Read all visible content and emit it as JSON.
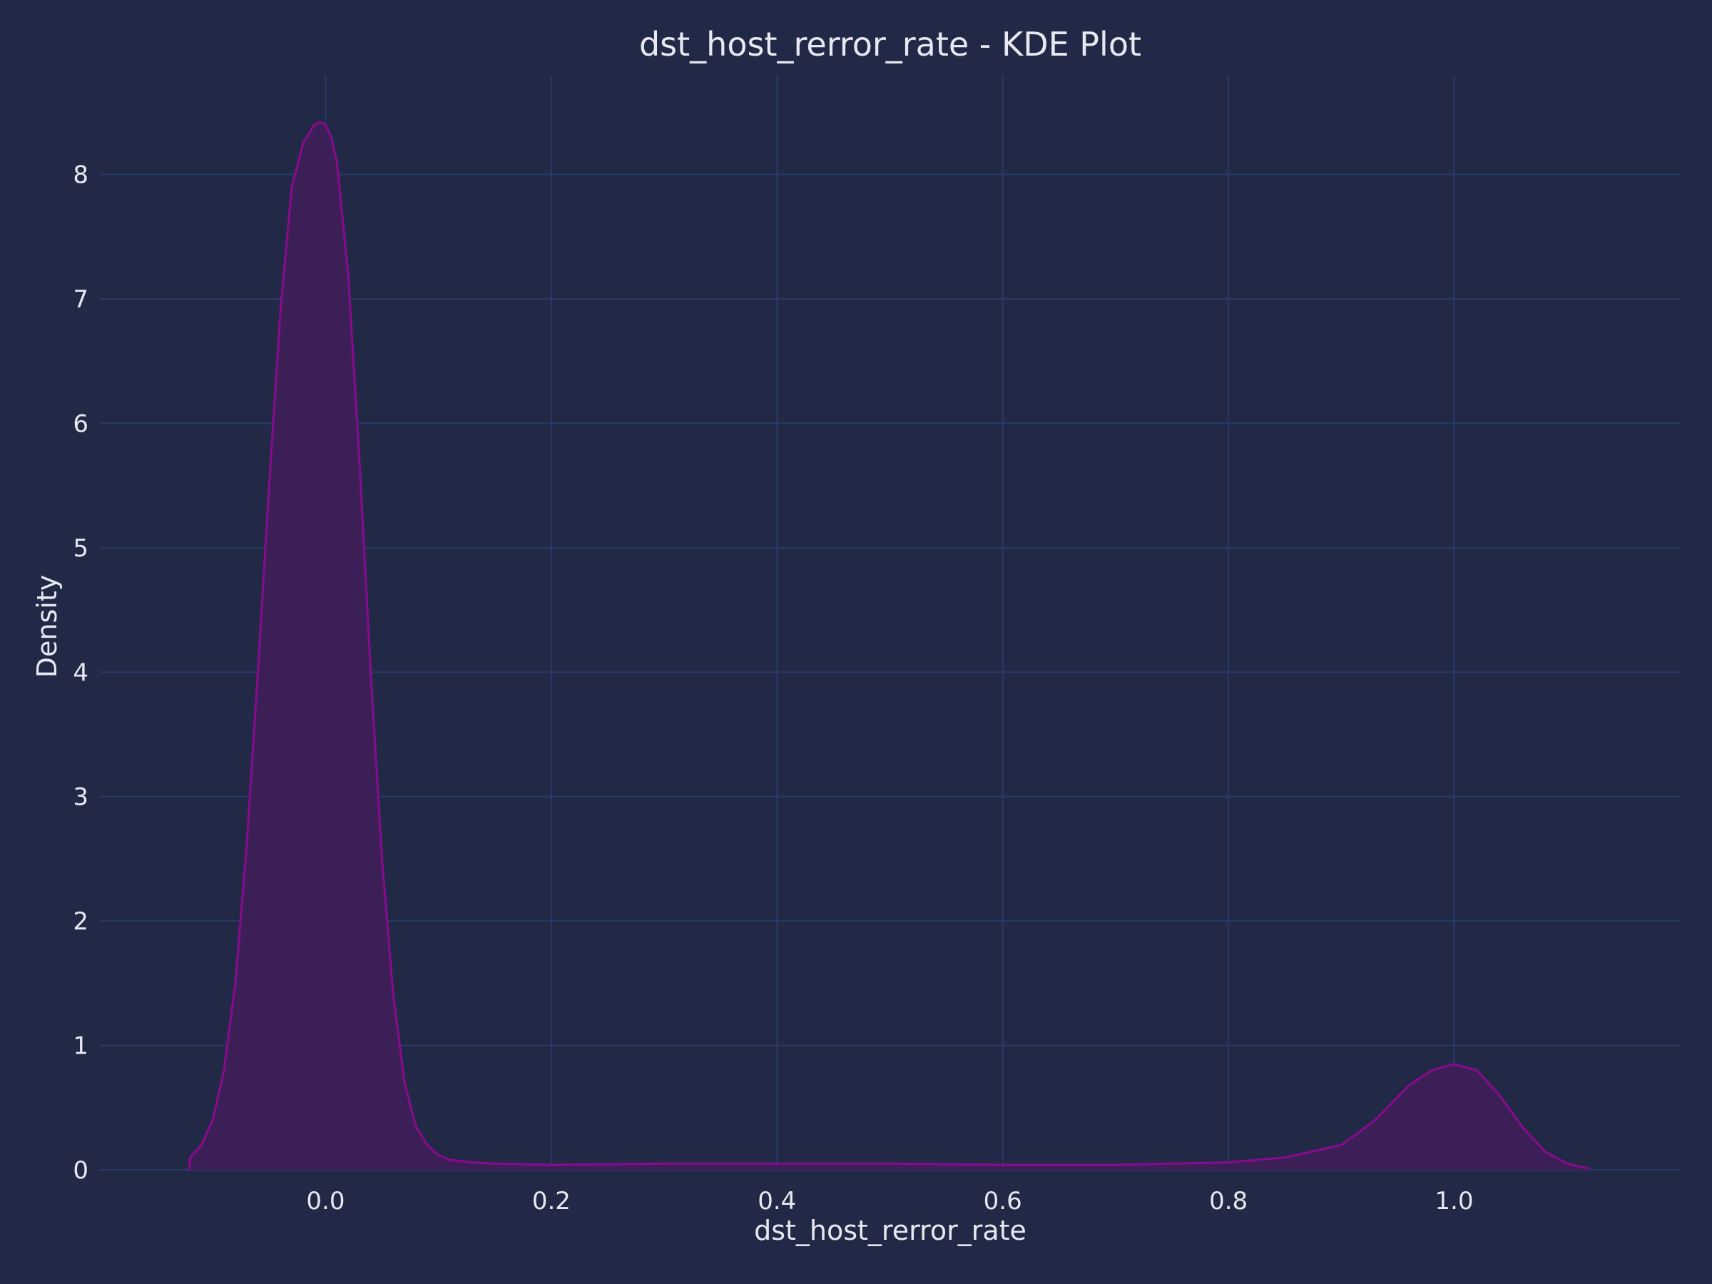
{
  "chart_data": {
    "type": "area",
    "title": "dst_host_rerror_rate - KDE Plot",
    "xlabel": "dst_host_rerror_rate",
    "ylabel": "Density",
    "xlim": [
      -0.2,
      1.2
    ],
    "ylim": [
      0,
      8.8
    ],
    "xticks": [
      0.0,
      0.2,
      0.4,
      0.6,
      0.8,
      1.0
    ],
    "xtick_labels": [
      "0.0",
      "0.2",
      "0.4",
      "0.6",
      "0.8",
      "1.0"
    ],
    "yticks": [
      0,
      1,
      2,
      3,
      4,
      5,
      6,
      7,
      8
    ],
    "ytick_labels": [
      "0",
      "1",
      "2",
      "3",
      "4",
      "5",
      "6",
      "7",
      "8"
    ],
    "grid": true,
    "colors": {
      "line": "#8a0a8f",
      "fill": "#3d1f57",
      "background": "#212946",
      "grid": "#2a3a66"
    },
    "series": [
      {
        "x": [
          -0.121,
          -0.12,
          -0.11,
          -0.1,
          -0.09,
          -0.08,
          -0.07,
          -0.06,
          -0.05,
          -0.04,
          -0.03,
          -0.02,
          -0.01,
          -0.005,
          0.0,
          0.005,
          0.01,
          0.02,
          0.03,
          0.04,
          0.05,
          0.06,
          0.07,
          0.08,
          0.09,
          0.1,
          0.11,
          0.12,
          0.13,
          0.15,
          0.2,
          0.3,
          0.4,
          0.5,
          0.6,
          0.7,
          0.8,
          0.85,
          0.9,
          0.93,
          0.96,
          0.98,
          1.0,
          1.02,
          1.04,
          1.06,
          1.08,
          1.1,
          1.12
        ],
        "values": [
          0.0,
          0.1,
          0.2,
          0.4,
          0.8,
          1.5,
          2.6,
          4.0,
          5.5,
          6.9,
          7.9,
          8.25,
          8.4,
          8.42,
          8.4,
          8.3,
          8.1,
          7.2,
          5.7,
          4.0,
          2.5,
          1.4,
          0.7,
          0.35,
          0.2,
          0.12,
          0.08,
          0.07,
          0.06,
          0.05,
          0.04,
          0.05,
          0.05,
          0.05,
          0.04,
          0.04,
          0.06,
          0.1,
          0.2,
          0.4,
          0.68,
          0.8,
          0.85,
          0.8,
          0.6,
          0.35,
          0.15,
          0.05,
          0.01
        ]
      }
    ]
  }
}
